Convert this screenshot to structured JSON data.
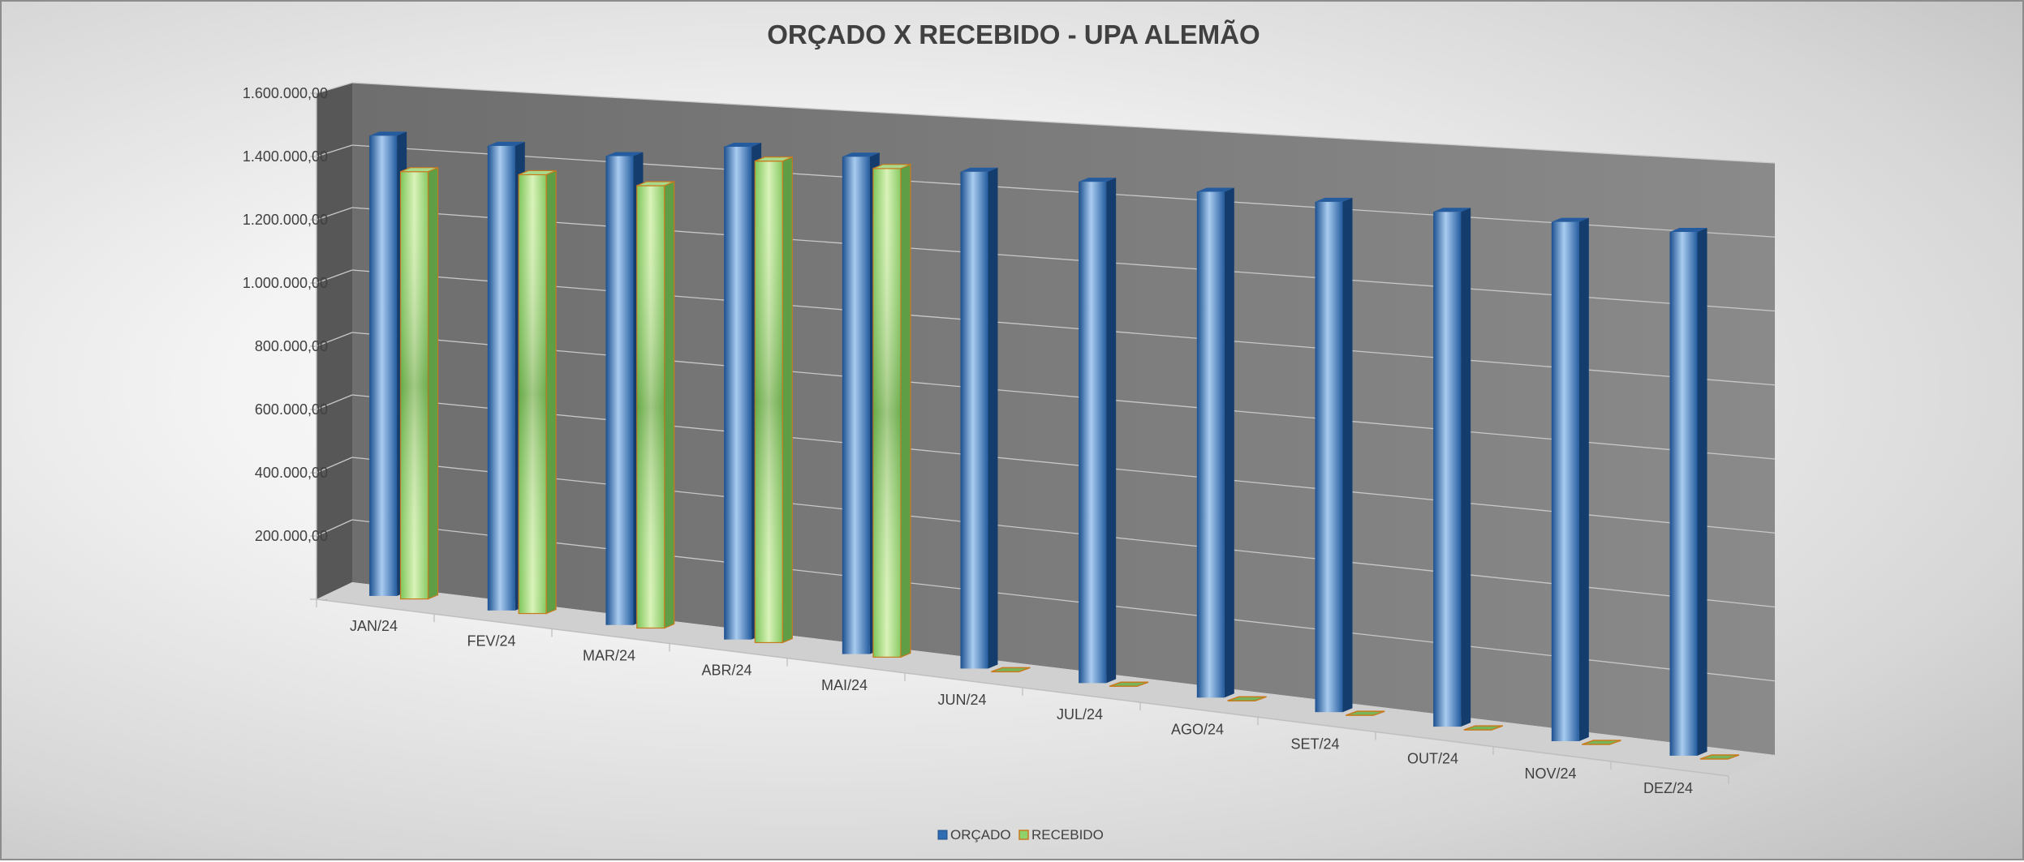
{
  "chart_data": {
    "type": "bar",
    "title": "ORÇADO X RECEBIDO - UPA ALEMÃO",
    "xlabel": "",
    "ylabel": "",
    "categories": [
      "JAN/24",
      "FEV/24",
      "MAR/24",
      "ABR/24",
      "MAI/24",
      "JUN/24",
      "JUL/24",
      "AGO/24",
      "SET/24",
      "OUT/24",
      "NOV/24",
      "DEZ/24"
    ],
    "series": [
      {
        "name": "ORÇADO",
        "values": [
          1460000,
          1460000,
          1460000,
          1520000,
          1520000,
          1520000,
          1520000,
          1520000,
          1520000,
          1520000,
          1520000,
          1520000
        ]
      },
      {
        "name": "RECEBIDO",
        "values": [
          1355000,
          1380000,
          1380000,
          1490000,
          1500000,
          0,
          0,
          0,
          0,
          0,
          0,
          0
        ]
      }
    ],
    "y_ticks": [
      "-",
      "200.000,00",
      "400.000,00",
      "600.000,00",
      "800.000,00",
      "1.000.000,00",
      "1.200.000,00",
      "1.400.000,00",
      "1.600.000,00"
    ],
    "ylim": [
      0,
      1600000
    ],
    "grid": true,
    "legend_position": "bottom",
    "colors": {
      "orcado": "#2e6db4",
      "recebido": "#8fd16a",
      "recebido_edge": "#c87b1e"
    }
  }
}
